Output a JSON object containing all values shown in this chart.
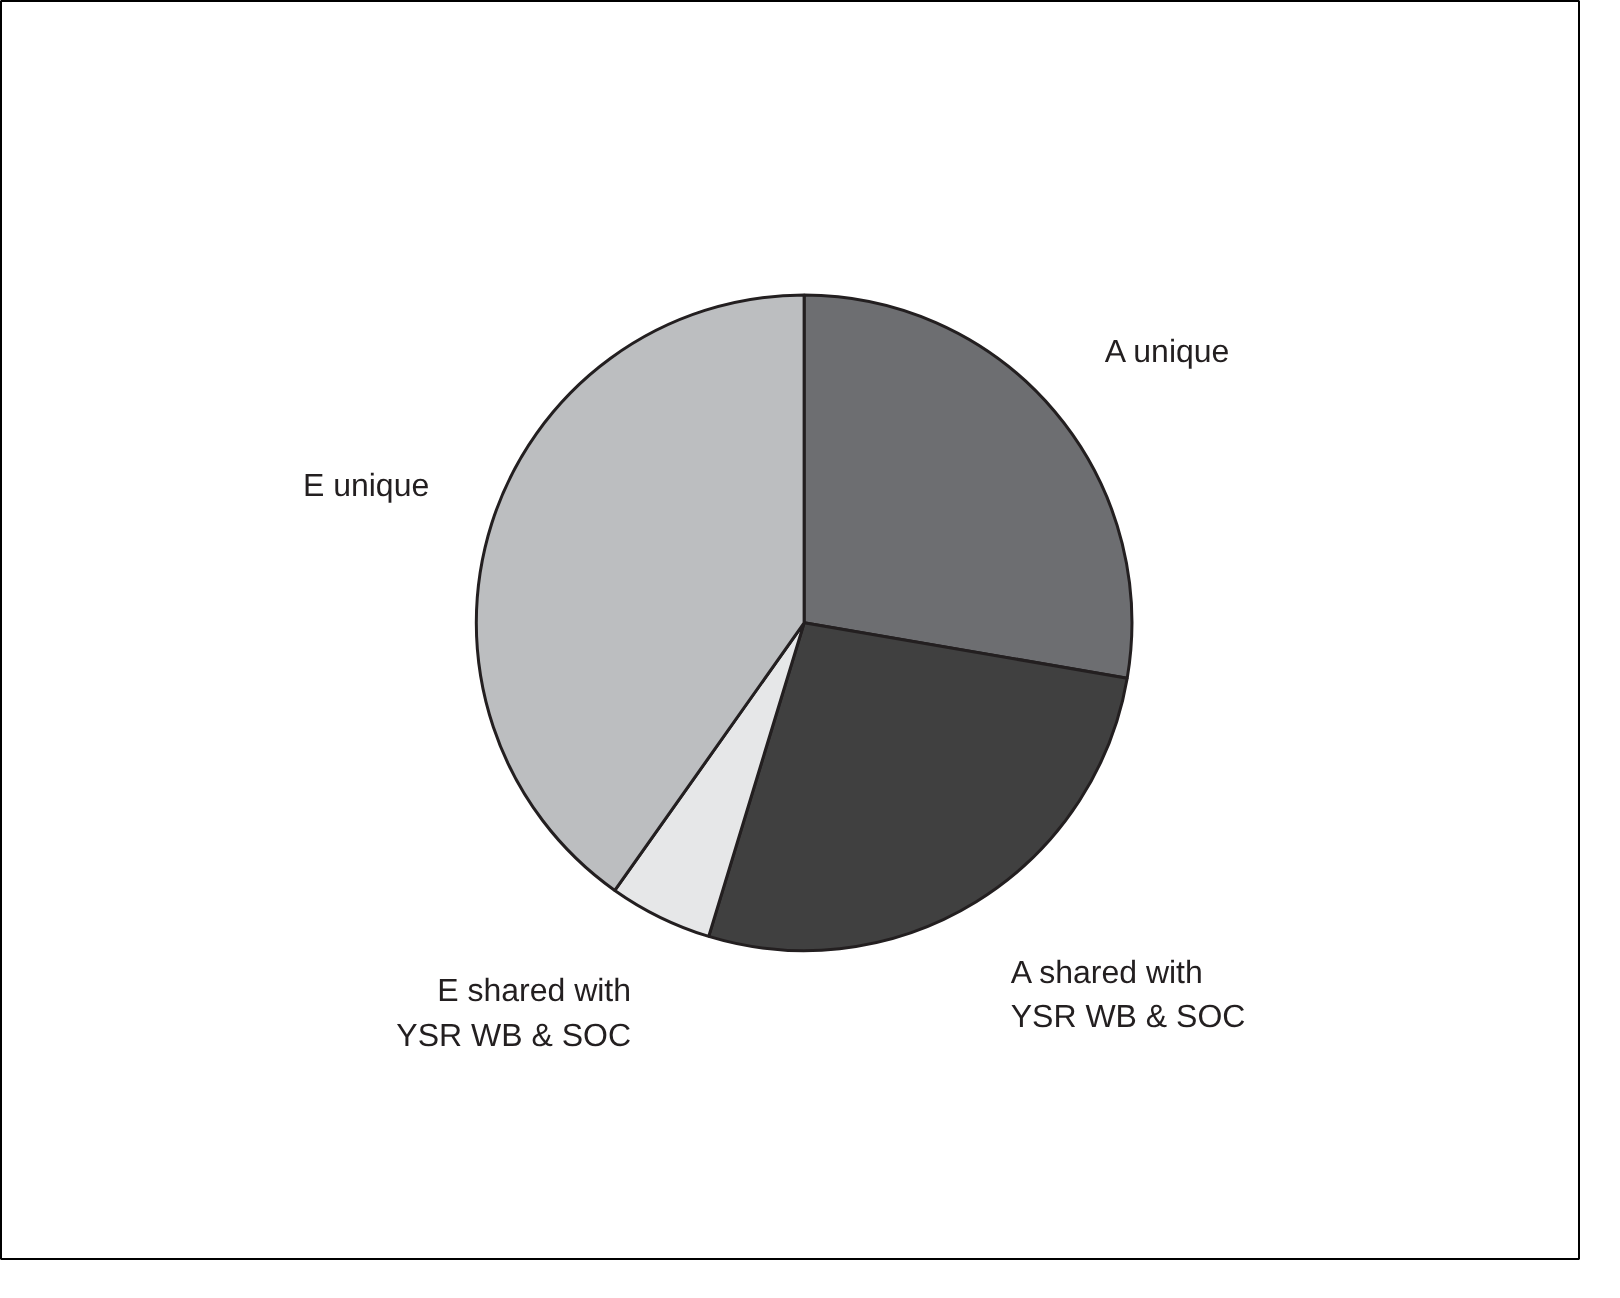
{
  "chart_data": {
    "type": "pie",
    "categories": [
      "A unique",
      "A shared with YSR WB & SOC",
      "E shared with YSR WB & SOC",
      "E unique"
    ],
    "values": [
      27.7,
      27.0,
      5.1,
      40.2
    ],
    "colors": [
      "#6d6e71",
      "#404040",
      "#e6e7e8",
      "#bcbec0"
    ]
  }
}
